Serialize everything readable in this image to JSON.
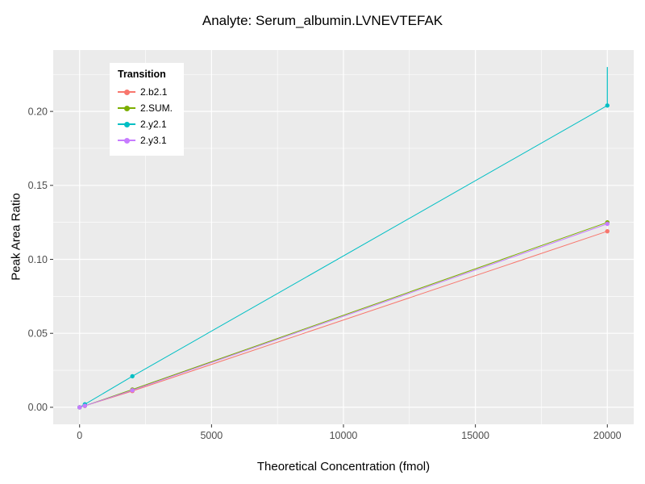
{
  "chart_data": {
    "type": "line",
    "title": "Analyte: Serum_albumin.LVNEVTEFAK",
    "xlabel": "Theoretical Concentration (fmol)",
    "ylabel": "Peak Area Ratio",
    "legend_title": "Transition",
    "legend_position": "inside-top-left",
    "grid": true,
    "panel_background": "#EBEBEB",
    "gridline_color": "#FFFFFF",
    "tick_label_color": "#4D4D4D",
    "tick_mark_color": "#333333",
    "x_domain": [
      -1000,
      21000
    ],
    "y_domain": [
      -0.0115,
      0.2415
    ],
    "x_ticks": [
      {
        "v": 0,
        "label": "0"
      },
      {
        "v": 5000,
        "label": "5000"
      },
      {
        "v": 10000,
        "label": "10000"
      },
      {
        "v": 15000,
        "label": "15000"
      },
      {
        "v": 20000,
        "label": "20000"
      }
    ],
    "y_ticks": [
      {
        "v": 0.0,
        "label": "0.00"
      },
      {
        "v": 0.05,
        "label": "0.05"
      },
      {
        "v": 0.1,
        "label": "0.10"
      },
      {
        "v": 0.15,
        "label": "0.15"
      },
      {
        "v": 0.2,
        "label": "0.20"
      }
    ],
    "x_minor_ticks": [
      2500,
      7500,
      12500,
      17500
    ],
    "y_minor_ticks": [
      0.025,
      0.075,
      0.125,
      0.175,
      0.225
    ],
    "series": [
      {
        "name": "2.b2.1",
        "color": "#F8766D",
        "x": [
          0,
          200,
          2000,
          20000
        ],
        "y": [
          0.0,
          0.001,
          0.011,
          0.119
        ]
      },
      {
        "name": "2.SUM.",
        "color": "#7CAE00",
        "x": [
          0,
          200,
          2000,
          20000
        ],
        "y": [
          0.0,
          0.001,
          0.012,
          0.125
        ]
      },
      {
        "name": "2.y2.1",
        "color": "#00BFC4",
        "x": [
          0,
          200,
          2000,
          20000
        ],
        "y": [
          0.0,
          0.002,
          0.021,
          0.204
        ],
        "error_bar": {
          "x": 20000,
          "y_low": 0.204,
          "y_high": 0.23
        }
      },
      {
        "name": "2.y3.1",
        "color": "#C77CFF",
        "x": [
          0,
          200,
          2000,
          20000
        ],
        "y": [
          0.0,
          0.001,
          0.0115,
          0.124
        ]
      }
    ]
  }
}
